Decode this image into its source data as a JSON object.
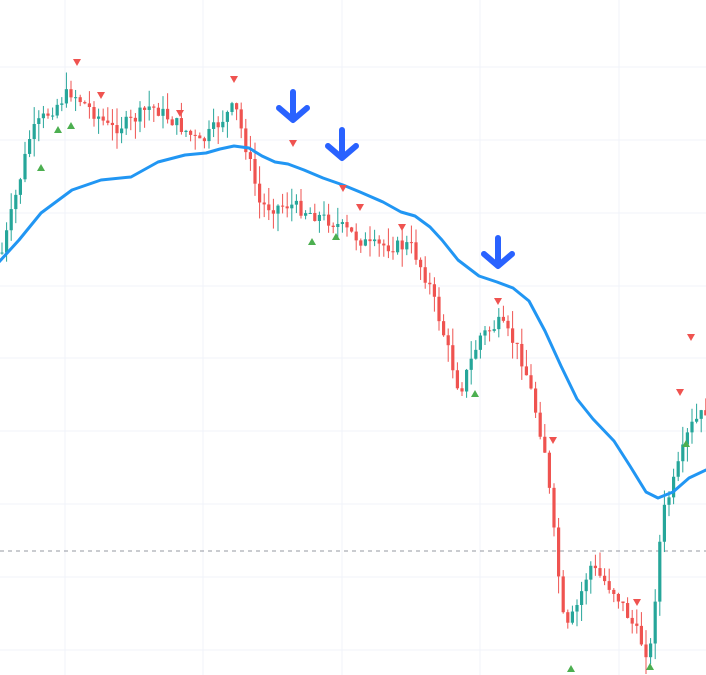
{
  "chart_data": {
    "type": "candlestick",
    "title": "",
    "xlabel": "",
    "ylabel": "",
    "grid": true,
    "legend": "none",
    "colors": {
      "up": "#26a69a",
      "down": "#ef5350",
      "moving_average": "#2196f3",
      "marker_up": "#4caf50",
      "marker_down": "#ef5350",
      "arrow": "#2962ff",
      "grid": "#f0f3fa",
      "dashed_line": "#9598a1"
    },
    "series": [
      {
        "kind": "moving-average",
        "anchors": [
          [
            -1,
            262
          ],
          [
            19,
            240
          ],
          [
            41,
            213
          ],
          [
            72,
            190
          ],
          [
            101,
            180
          ],
          [
            131,
            177
          ],
          [
            158,
            162
          ],
          [
            185,
            155
          ],
          [
            206,
            153
          ],
          [
            220,
            149
          ],
          [
            234,
            146
          ],
          [
            249,
            148
          ],
          [
            262,
            156
          ],
          [
            275,
            162
          ],
          [
            288,
            164
          ],
          [
            304,
            170
          ],
          [
            323,
            178
          ],
          [
            343,
            185
          ],
          [
            360,
            192
          ],
          [
            383,
            202
          ],
          [
            401,
            212
          ],
          [
            415,
            216
          ],
          [
            430,
            227
          ],
          [
            442,
            240
          ],
          [
            458,
            260
          ],
          [
            479,
            276
          ],
          [
            497,
            282
          ],
          [
            513,
            288
          ],
          [
            529,
            301
          ],
          [
            545,
            331
          ],
          [
            561,
            366
          ],
          [
            577,
            399
          ],
          [
            593,
            419
          ],
          [
            614,
            441
          ],
          [
            630,
            466
          ],
          [
            646,
            492
          ],
          [
            658,
            498
          ],
          [
            673,
            492
          ],
          [
            689,
            478
          ],
          [
            706,
            470
          ]
        ]
      }
    ],
    "candles": [],
    "reference_line": 0
  },
  "annotations": {
    "arrows": 3,
    "up_markers": 8,
    "down_markers": 13
  }
}
